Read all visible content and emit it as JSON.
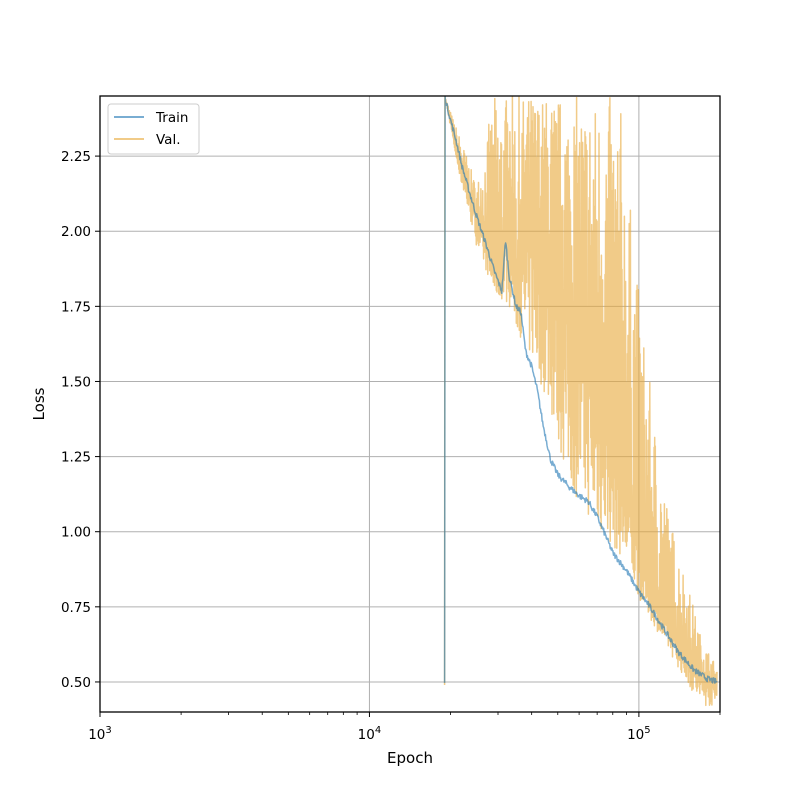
{
  "chart_data": {
    "type": "line",
    "title": "",
    "xlabel": "Epoch",
    "ylabel": "Loss",
    "x_scale": "log",
    "xlim": [
      1000,
      200000
    ],
    "ylim": [
      0.4,
      2.45
    ],
    "x_ticks": [
      {
        "value": 1000,
        "base": "10",
        "exp": "3"
      },
      {
        "value": 10000,
        "base": "10",
        "exp": "4"
      },
      {
        "value": 100000,
        "base": "10",
        "exp": "5"
      }
    ],
    "y_ticks": [
      {
        "value": 0.5,
        "label": "0.50"
      },
      {
        "value": 0.75,
        "label": "0.75"
      },
      {
        "value": 1.0,
        "label": "1.00"
      },
      {
        "value": 1.25,
        "label": "1.25"
      },
      {
        "value": 1.5,
        "label": "1.50"
      },
      {
        "value": 1.75,
        "label": "1.75"
      },
      {
        "value": 2.0,
        "label": "2.00"
      },
      {
        "value": 2.25,
        "label": "2.25"
      }
    ],
    "grid": true,
    "legend_position": "top-left",
    "series": [
      {
        "name": "Train",
        "color": "#1f77b4",
        "points": [
          [
            19000,
            2.45
          ],
          [
            20000,
            2.37
          ],
          [
            21000,
            2.3
          ],
          [
            22000,
            2.22
          ],
          [
            23500,
            2.13
          ],
          [
            25000,
            2.05
          ],
          [
            27000,
            1.96
          ],
          [
            29000,
            1.87
          ],
          [
            31000,
            1.8
          ],
          [
            32000,
            1.97
          ],
          [
            33000,
            1.85
          ],
          [
            35000,
            1.75
          ],
          [
            36500,
            1.73
          ],
          [
            38000,
            1.6
          ],
          [
            40000,
            1.55
          ],
          [
            42000,
            1.47
          ],
          [
            44000,
            1.36
          ],
          [
            47000,
            1.24
          ],
          [
            50000,
            1.19
          ],
          [
            55000,
            1.15
          ],
          [
            60000,
            1.12
          ],
          [
            65000,
            1.1
          ],
          [
            70000,
            1.05
          ],
          [
            75000,
            0.99
          ],
          [
            80000,
            0.93
          ],
          [
            90000,
            0.87
          ],
          [
            100000,
            0.8
          ],
          [
            110000,
            0.75
          ],
          [
            125000,
            0.67
          ],
          [
            140000,
            0.6
          ],
          [
            160000,
            0.54
          ],
          [
            180000,
            0.51
          ],
          [
            195000,
            0.5
          ]
        ]
      },
      {
        "name": "Val.",
        "color": "#e8a838",
        "points": [
          [
            19000,
            2.45
          ],
          [
            20000,
            2.37
          ],
          [
            21000,
            2.25
          ],
          [
            22000,
            2.2
          ],
          [
            23500,
            2.12
          ],
          [
            25000,
            2.04
          ],
          [
            27000,
            1.95
          ],
          [
            29000,
            1.87
          ],
          [
            31000,
            1.8
          ],
          [
            33000,
            2.2
          ],
          [
            35000,
            1.75
          ],
          [
            37000,
            1.9
          ],
          [
            40000,
            2.05
          ],
          [
            43000,
            1.9
          ],
          [
            47000,
            1.85
          ],
          [
            52000,
            1.75
          ],
          [
            58000,
            1.65
          ],
          [
            65000,
            1.55
          ],
          [
            72000,
            1.45
          ],
          [
            80000,
            1.3
          ],
          [
            90000,
            1.15
          ],
          [
            100000,
            0.95
          ],
          [
            110000,
            0.8
          ],
          [
            125000,
            0.7
          ],
          [
            140000,
            0.62
          ],
          [
            160000,
            0.55
          ],
          [
            180000,
            0.5
          ],
          [
            195000,
            0.49
          ]
        ],
        "noise_band": [
          [
            19000,
            2.45,
            2.45
          ],
          [
            22000,
            2.15,
            2.3
          ],
          [
            25000,
            1.95,
            2.15
          ],
          [
            29000,
            1.8,
            2.45
          ],
          [
            33000,
            1.75,
            2.45
          ],
          [
            38000,
            1.6,
            2.45
          ],
          [
            45000,
            1.45,
            2.45
          ],
          [
            55000,
            1.15,
            2.45
          ],
          [
            70000,
            1.0,
            2.45
          ],
          [
            85000,
            0.92,
            2.45
          ],
          [
            100000,
            0.78,
            1.8
          ],
          [
            115000,
            0.68,
            1.35
          ],
          [
            130000,
            0.6,
            1.05
          ],
          [
            150000,
            0.5,
            0.85
          ],
          [
            170000,
            0.42,
            0.65
          ],
          [
            195000,
            0.42,
            0.55
          ]
        ]
      }
    ]
  }
}
